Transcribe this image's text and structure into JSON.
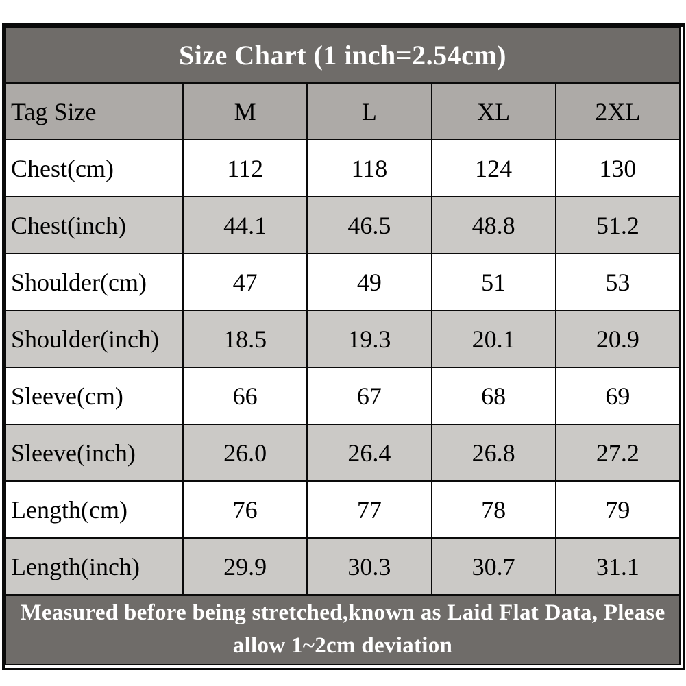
{
  "table": {
    "title": "Size Chart (1 inch=2.54cm)",
    "columns": [
      "Tag Size",
      "M",
      "L",
      "XL",
      "2XL"
    ],
    "rows": [
      {
        "label": "Chest(cm)",
        "values": [
          "112",
          "118",
          "124",
          "130"
        ]
      },
      {
        "label": "Chest(inch)",
        "values": [
          "44.1",
          "46.5",
          "48.8",
          "51.2"
        ]
      },
      {
        "label": "Shoulder(cm)",
        "values": [
          "47",
          "49",
          "51",
          "53"
        ]
      },
      {
        "label": "Shoulder(inch)",
        "values": [
          "18.5",
          "19.3",
          "20.1",
          "20.9"
        ]
      },
      {
        "label": "Sleeve(cm)",
        "values": [
          "66",
          "67",
          "68",
          "69"
        ]
      },
      {
        "label": "Sleeve(inch)",
        "values": [
          "26.0",
          "26.4",
          "26.8",
          "27.2"
        ]
      },
      {
        "label": "Length(cm)",
        "values": [
          "76",
          "77",
          "78",
          "79"
        ]
      },
      {
        "label": "Length(inch)",
        "values": [
          "29.9",
          "30.3",
          "30.7",
          "31.1"
        ]
      }
    ],
    "footer": "Measured before being stretched,known as Laid Flat Data, Please allow 1~2cm deviation"
  },
  "colors": {
    "title_bg": "#6F6C69",
    "header_bg": "#ADAAA7",
    "row_bg": "#FFFFFF",
    "row_alt_bg": "#CBC9C6",
    "border_color": "#0A0A0A",
    "title_text": "#FFFFFF",
    "cell_text": "#000000"
  }
}
